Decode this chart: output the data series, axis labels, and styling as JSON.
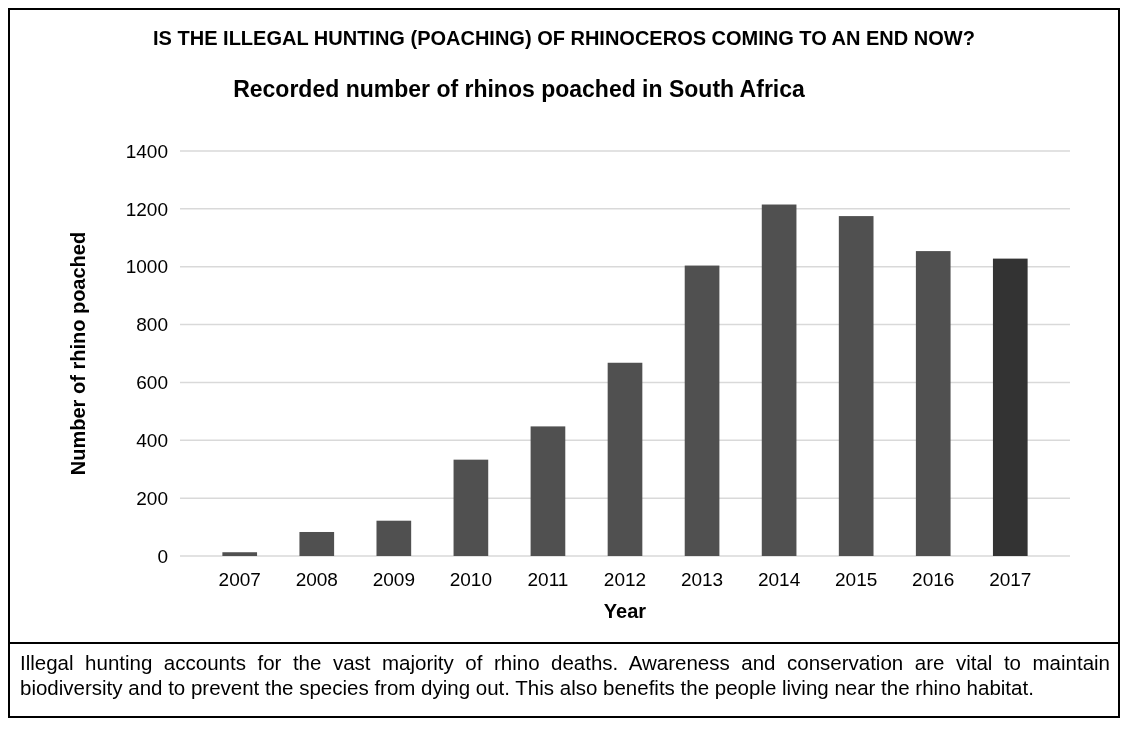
{
  "chart_data": {
    "type": "bar",
    "title": "IS THE ILLEGAL HUNTING (POACHING) OF RHINOCEROS COMING TO AN END NOW?",
    "subtitle": "Recorded number of rhinos poached in South Africa",
    "xlabel": "Year",
    "ylabel": "Number of rhino poached",
    "categories": [
      "2007",
      "2008",
      "2009",
      "2010",
      "2011",
      "2012",
      "2013",
      "2014",
      "2015",
      "2016",
      "2017"
    ],
    "values": [
      13,
      83,
      122,
      333,
      448,
      668,
      1004,
      1215,
      1175,
      1054,
      1028
    ],
    "colors": [
      "#505050",
      "#505050",
      "#505050",
      "#505050",
      "#505050",
      "#505050",
      "#505050",
      "#505050",
      "#505050",
      "#505050",
      "#333333"
    ],
    "ylim": [
      0,
      1400
    ],
    "yticks": [
      0,
      200,
      400,
      600,
      800,
      1000,
      1200,
      1400
    ],
    "grid": "y",
    "annotations": [
      "Illegal hunting accounts for the vast majority of rhino deaths. Awareness and conservation are vital to maintain biodiversity and to prevent the species from dying out. This also benefits the people living near the rhino habitat."
    ]
  }
}
